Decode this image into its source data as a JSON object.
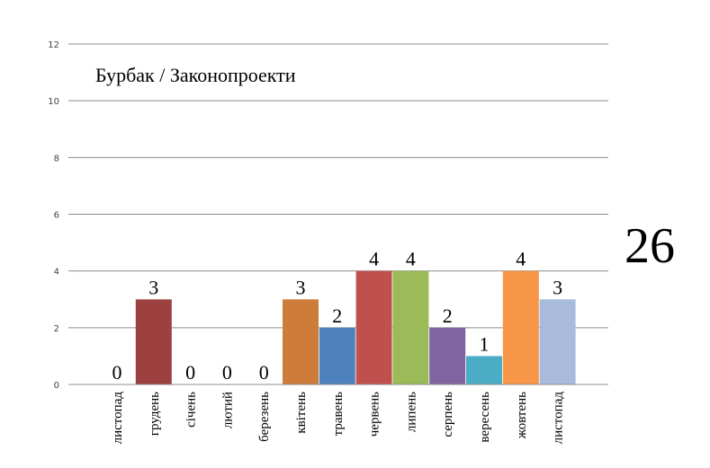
{
  "chart_data": {
    "type": "bar",
    "title": "Бурбак / Законопроекти",
    "total": "26",
    "categories": [
      "листопад",
      "грудень",
      "січень",
      "лютий",
      "березень",
      "квітень",
      "травень",
      "червень",
      "липень",
      "серпень",
      "вересень",
      "жовтень",
      "листопад"
    ],
    "values": [
      0,
      3,
      0,
      0,
      0,
      3,
      2,
      4,
      4,
      2,
      1,
      4,
      3
    ],
    "colors": [
      "#9c4040",
      "#9c4040",
      "#9c4040",
      "#9c4040",
      "#9c4040",
      "#cd7c39",
      "#4f81bd",
      "#c0504d",
      "#9bbb59",
      "#8064a2",
      "#4bacc6",
      "#f79646",
      "#a9bbdb"
    ],
    "ylim": [
      0,
      12
    ],
    "yticks": [
      0,
      2,
      4,
      6,
      8,
      10,
      12
    ],
    "grid": true,
    "xlabel": "",
    "ylabel": ""
  }
}
